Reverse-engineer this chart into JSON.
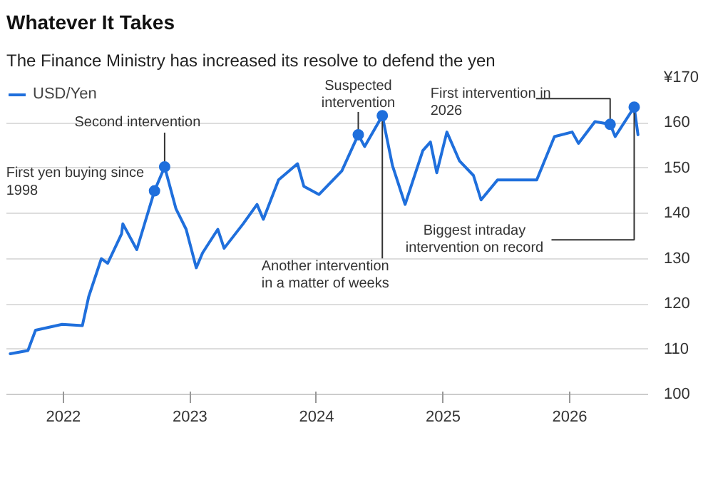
{
  "chart_data": {
    "type": "line",
    "title": "Whatever It Takes",
    "subtitle": "The Finance Ministry has increased its resolve to defend the yen",
    "x": [
      2021.58,
      2021.72,
      2021.78,
      2021.99,
      2022.15,
      2022.2,
      2022.3,
      2022.35,
      2022.46,
      2022.47,
      2022.58,
      2022.72,
      2022.8,
      2022.89,
      2022.97,
      2023.05,
      2023.1,
      2023.22,
      2023.27,
      2023.42,
      2023.53,
      2023.58,
      2023.7,
      2023.85,
      2023.9,
      2024.02,
      2024.2,
      2024.33,
      2024.38,
      2024.52,
      2024.6,
      2024.7,
      2024.84,
      2024.9,
      2024.95,
      2025.03,
      2025.13,
      2025.24,
      2025.3,
      2025.43,
      2025.63,
      2025.74,
      2025.88,
      2026.02,
      2026.07,
      2026.2,
      2026.32,
      2026.36,
      2026.51,
      2026.54
    ],
    "series": [
      {
        "name": "USD/Yen",
        "color": "#1f6fdc",
        "values": [
          109.0,
          109.7,
          114.2,
          115.5,
          115.2,
          121.6,
          130.0,
          129.0,
          135.5,
          137.7,
          132.0,
          145.0,
          150.3,
          141.0,
          136.5,
          128.0,
          131.3,
          136.5,
          132.3,
          137.7,
          142.0,
          138.7,
          147.4,
          151.0,
          146.0,
          144.2,
          149.4,
          157.4,
          154.8,
          161.6,
          150.6,
          142.0,
          153.9,
          155.8,
          149.0,
          158.0,
          151.6,
          148.4,
          143.0,
          147.4,
          147.4,
          147.4,
          157.0,
          158.0,
          155.5,
          160.3,
          159.7,
          157.0,
          163.5,
          157.4
        ]
      }
    ],
    "xlim": [
      2021.55,
      2026.62
    ],
    "xticks": [
      2022,
      2023,
      2024,
      2025,
      2026
    ],
    "ylim": [
      100,
      170
    ],
    "yticks": [
      100,
      110,
      120,
      130,
      140,
      150,
      160,
      {
        "value": 170,
        "label": "¥170"
      }
    ],
    "grid": "y",
    "legend": "top left",
    "annotations": [
      {
        "text": "First yen buying since 1998",
        "x": 2022.72,
        "y": 145.0
      },
      {
        "text": "Second intervention",
        "x": 2022.8,
        "y": 150.3
      },
      {
        "text": "Suspected intervention",
        "x": 2024.33,
        "y": 157.4
      },
      {
        "text": "Another intervention in a matter of weeks",
        "x": 2024.52,
        "y": 161.6
      },
      {
        "text": "Biggest intraday intervention on record",
        "x": 2026.51,
        "y": 163.5
      },
      {
        "text": "First intervention in 2026",
        "x": 2026.32,
        "y": 159.7
      }
    ]
  }
}
